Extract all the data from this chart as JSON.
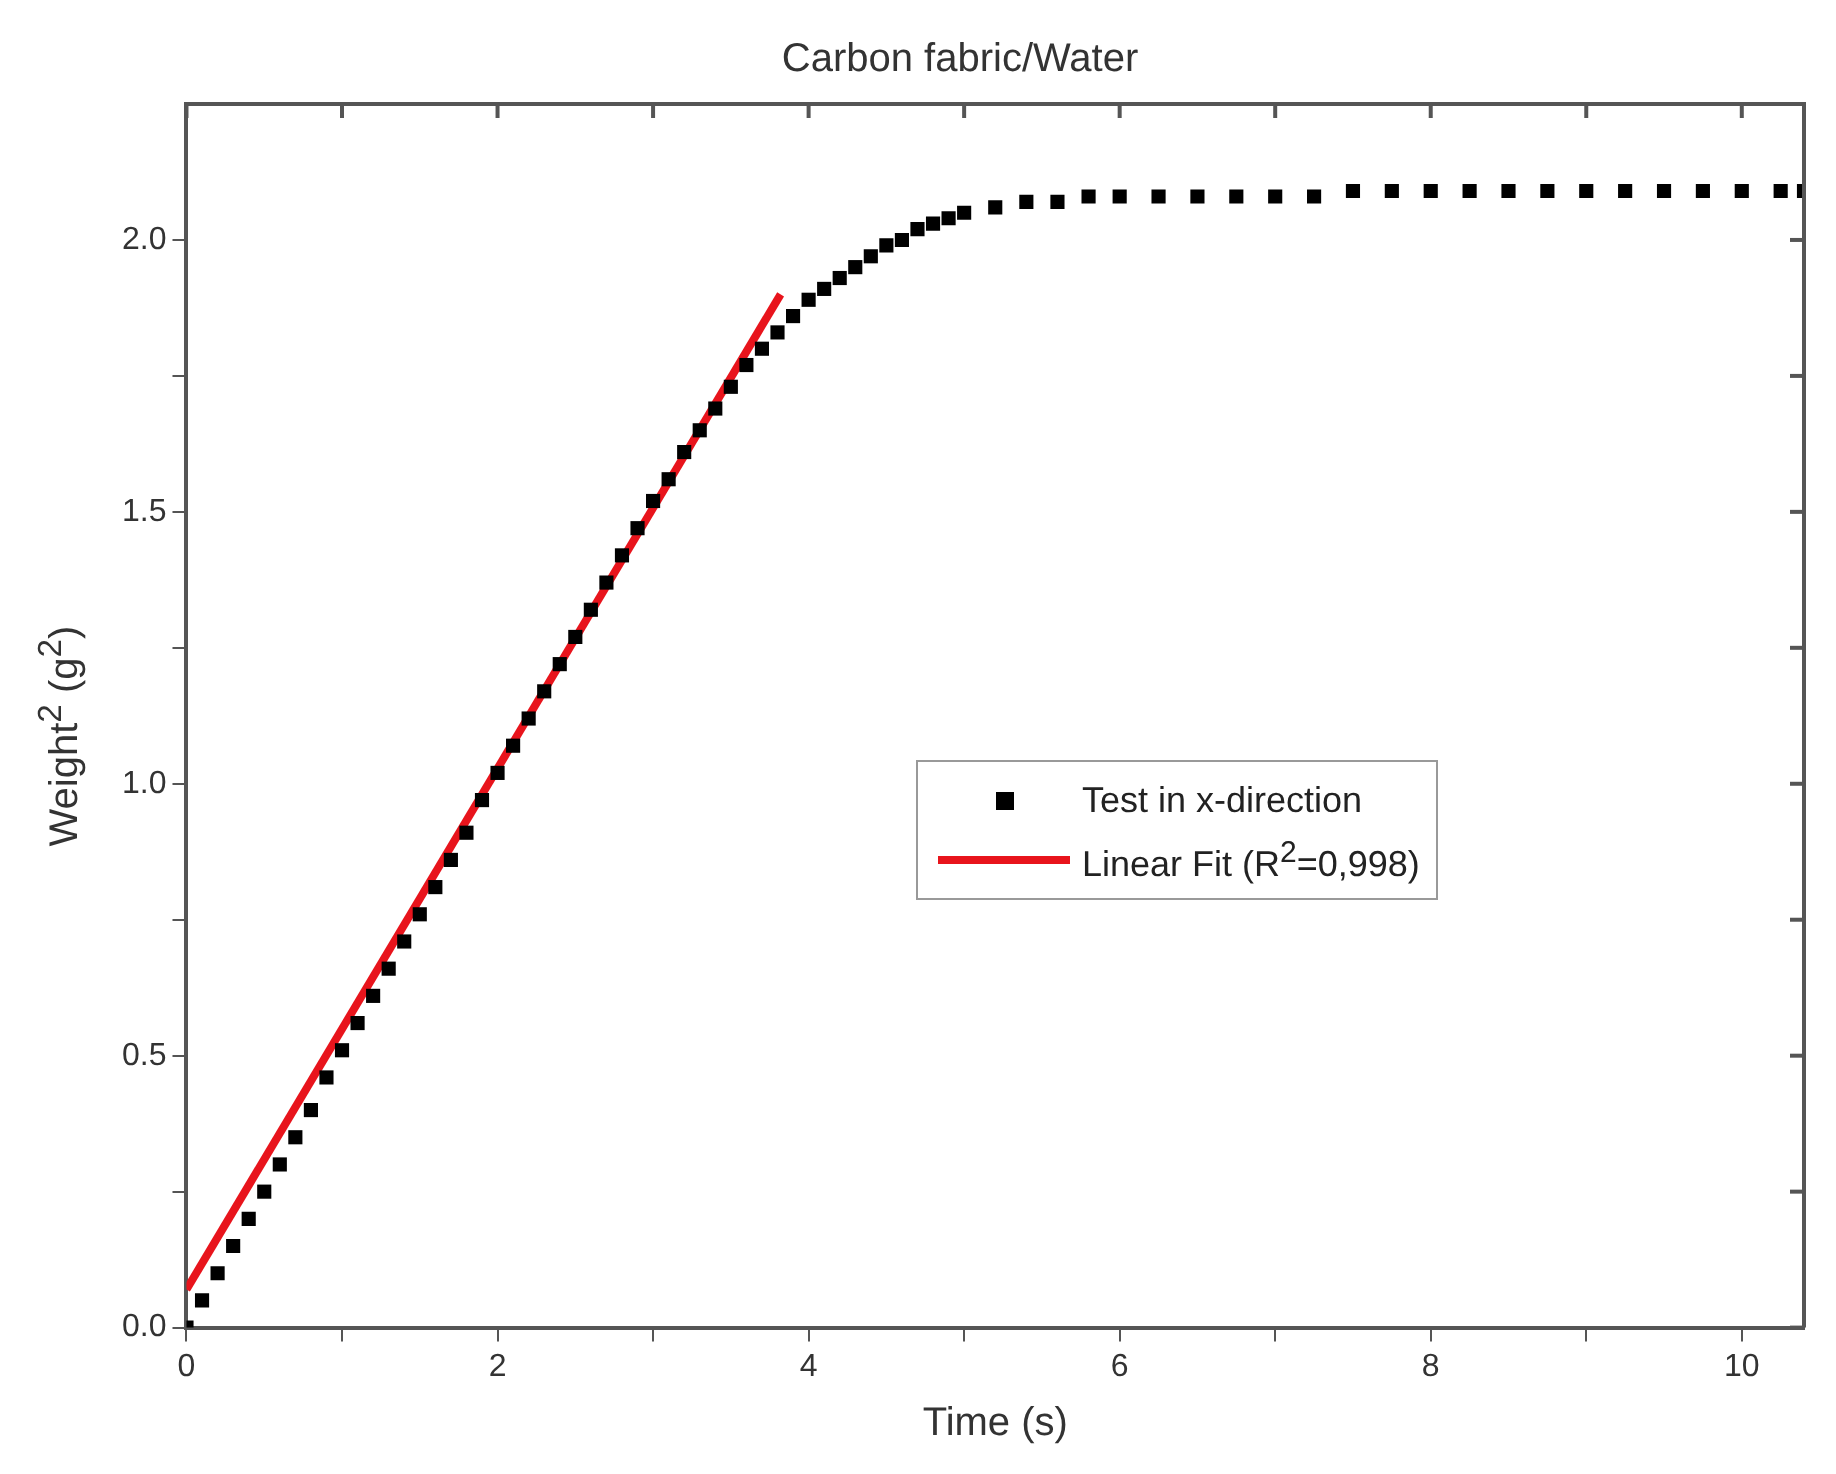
{
  "chart_data": {
    "type": "scatter",
    "title": "Carbon fabric/Water",
    "xlabel": "Time (s)",
    "ylabel": "Weight$^{2}$ (g$^{2}$)",
    "xlim": [
      0,
      10.4
    ],
    "ylim": [
      0,
      2.25
    ],
    "xticks": [
      0,
      {
        "value": 1,
        "label": null
      },
      2,
      {
        "value": 3,
        "label": null
      },
      4,
      {
        "value": 5,
        "label": null
      },
      6,
      {
        "value": 7,
        "label": null
      },
      8,
      {
        "value": 9,
        "label": null
      },
      10
    ],
    "yticks": [
      {
        "value": 0,
        "label": "0.0"
      },
      {
        "value": 0.25,
        "label": null
      },
      0.5,
      {
        "value": 0.75,
        "label": null
      },
      {
        "value": 1,
        "label": "1.0"
      },
      {
        "value": 1.25,
        "label": null
      },
      1.5,
      {
        "value": 1.75,
        "label": null
      },
      {
        "value": 2,
        "label": "2.0"
      }
    ],
    "grid": false,
    "legend": "center",
    "series": [
      {
        "name": "Test in x-direction",
        "marker": "square",
        "color": "#000000",
        "x": [
          0,
          0.1,
          0.2,
          0.3,
          0.4,
          0.5,
          0.6,
          0.7,
          0.8,
          0.9,
          1.0,
          1.1,
          1.2,
          1.3,
          1.4,
          1.5,
          1.6,
          1.7,
          1.8,
          1.9,
          2.0,
          2.1,
          2.2,
          2.3,
          2.4,
          2.5,
          2.6,
          2.7,
          2.8,
          2.9,
          3.0,
          3.1,
          3.2,
          3.3,
          3.4,
          3.5,
          3.6,
          3.7,
          3.8,
          3.9,
          4.0,
          4.1,
          4.2,
          4.3,
          4.4,
          4.5,
          4.6,
          4.7,
          4.8,
          4.9,
          5.0,
          5.2,
          5.4,
          5.6,
          5.8,
          6.0,
          6.25,
          6.5,
          6.75,
          7.0,
          7.25,
          7.5,
          7.75,
          8.0,
          8.25,
          8.5,
          8.75,
          9.0,
          9.25,
          9.5,
          9.75,
          10.0,
          10.25,
          10.4
        ],
        "values": [
          0,
          0.05,
          0.1,
          0.15,
          0.2,
          0.25,
          0.3,
          0.35,
          0.4,
          0.46,
          0.51,
          0.56,
          0.61,
          0.66,
          0.71,
          0.76,
          0.81,
          0.86,
          0.91,
          0.97,
          1.02,
          1.07,
          1.12,
          1.17,
          1.22,
          1.27,
          1.32,
          1.37,
          1.42,
          1.47,
          1.52,
          1.56,
          1.61,
          1.65,
          1.69,
          1.73,
          1.77,
          1.8,
          1.83,
          1.86,
          1.89,
          1.91,
          1.93,
          1.95,
          1.97,
          1.99,
          2.0,
          2.02,
          2.03,
          2.04,
          2.05,
          2.06,
          2.07,
          2.07,
          2.08,
          2.08,
          2.08,
          2.08,
          2.08,
          2.08,
          2.08,
          2.09,
          2.09,
          2.09,
          2.09,
          2.09,
          2.09,
          2.09,
          2.09,
          2.09,
          2.09,
          2.09,
          2.09,
          2.09
        ]
      },
      {
        "name": "Linear Fit (R$^{2}$=0,998)",
        "type": "line",
        "marker": "none",
        "line_style": "solid",
        "color": "#e8141c",
        "x": [
          0,
          3.82
        ],
        "values": [
          0.07,
          1.9
        ]
      }
    ]
  }
}
